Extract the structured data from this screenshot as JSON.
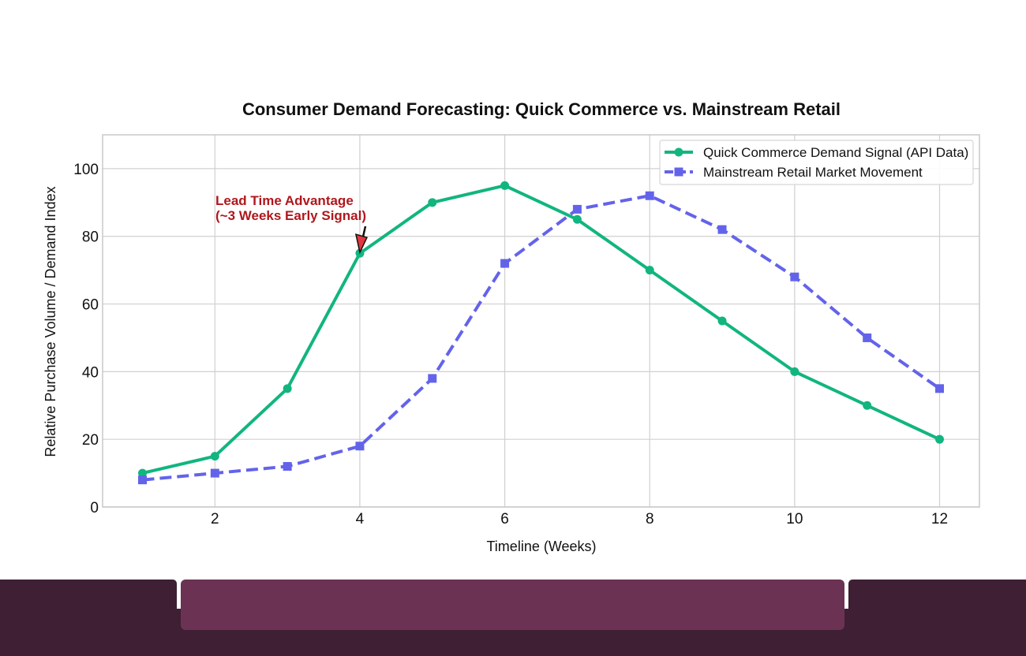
{
  "chart_data": {
    "type": "line",
    "title": "Consumer Demand Forecasting: Quick Commerce vs. Mainstream Retail",
    "xlabel": "Timeline (Weeks)",
    "ylabel": "Relative Purchase Volume / Demand Index",
    "xlim": [
      0.45,
      12.55
    ],
    "ylim": [
      0,
      110
    ],
    "xticks": [
      2,
      4,
      6,
      8,
      10,
      12
    ],
    "yticks": [
      0,
      20,
      40,
      60,
      80,
      100
    ],
    "grid": true,
    "legend_position": "top-right",
    "x": [
      1,
      2,
      3,
      4,
      5,
      6,
      7,
      8,
      9,
      10,
      11,
      12
    ],
    "series": [
      {
        "name": "Quick Commerce Demand Signal (API Data)",
        "values": [
          10,
          15,
          35,
          75,
          90,
          95,
          85,
          70,
          55,
          40,
          30,
          20
        ],
        "color": "#12b57f",
        "marker": "circle",
        "line_style": "solid"
      },
      {
        "name": "Mainstream Retail Market Movement",
        "values": [
          8,
          10,
          12,
          18,
          38,
          72,
          88,
          92,
          82,
          68,
          50,
          35
        ],
        "color": "#6363ea",
        "marker": "square",
        "line_style": "dashed"
      }
    ],
    "annotations": [
      {
        "text_lines": [
          "Lead Time Advantage",
          "(~3 Weeks Early Signal)"
        ],
        "point": [
          4,
          75
        ],
        "color": "#b0171c"
      }
    ]
  },
  "footer": {
    "colors": {
      "dark": "#3e1f33",
      "panel": "#6b3253"
    }
  }
}
